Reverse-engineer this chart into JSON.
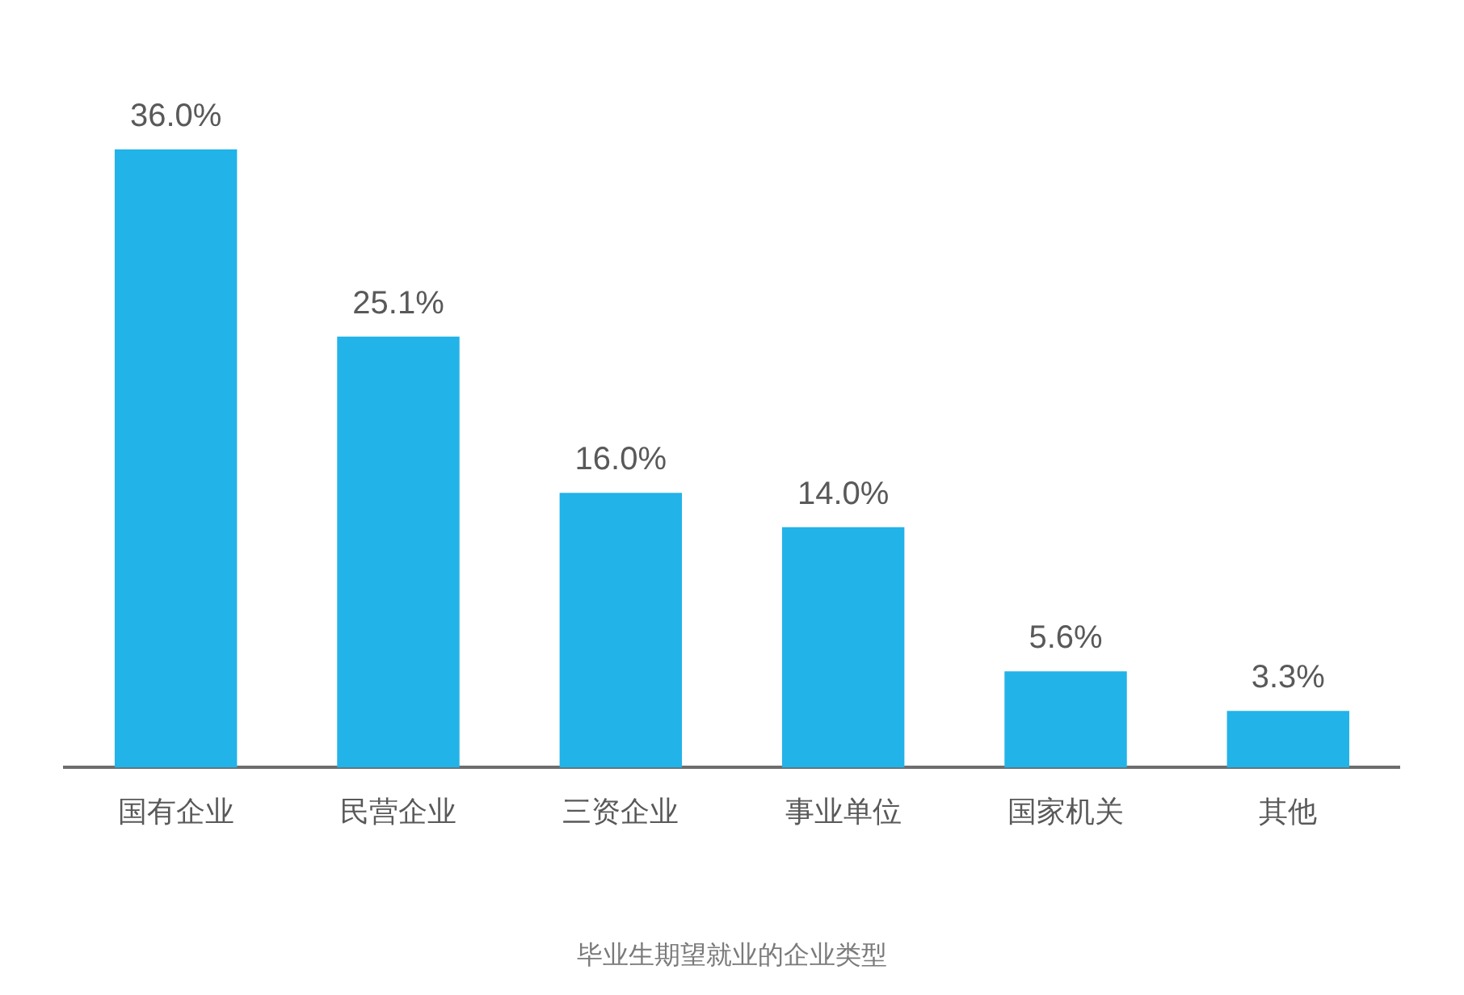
{
  "chart_data": {
    "type": "bar",
    "xlabel": "毕业生期望就业的企业类型",
    "categories": [
      "国有企业",
      "民营企业",
      "三资企业",
      "事业单位",
      "国家机关",
      "其他"
    ],
    "values": [
      36.0,
      25.1,
      16.0,
      14.0,
      5.6,
      3.3
    ],
    "value_labels": [
      "36.0%",
      "25.1%",
      "16.0%",
      "14.0%",
      "5.6%",
      "3.3%"
    ],
    "color": "#22b3e8",
    "grid": false,
    "legend": false,
    "tick_labels": "x"
  }
}
